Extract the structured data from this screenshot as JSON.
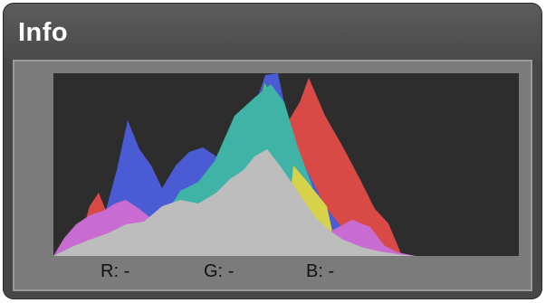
{
  "panel": {
    "title": "Info"
  },
  "histogram": {
    "colors": {
      "background": "#2d2d2d",
      "red": "#d94a47",
      "green": "#46c75a",
      "blue": "#4a5bd4",
      "cyan": "#3fb3a6",
      "yellow": "#d6d24a",
      "magenta": "#c86cd2",
      "luminosity": "#bdbdbd"
    }
  },
  "readouts": {
    "r": {
      "label": "R:",
      "value": "-"
    },
    "g": {
      "label": "G:",
      "value": "-"
    },
    "b": {
      "label": "B:",
      "value": "-"
    }
  }
}
